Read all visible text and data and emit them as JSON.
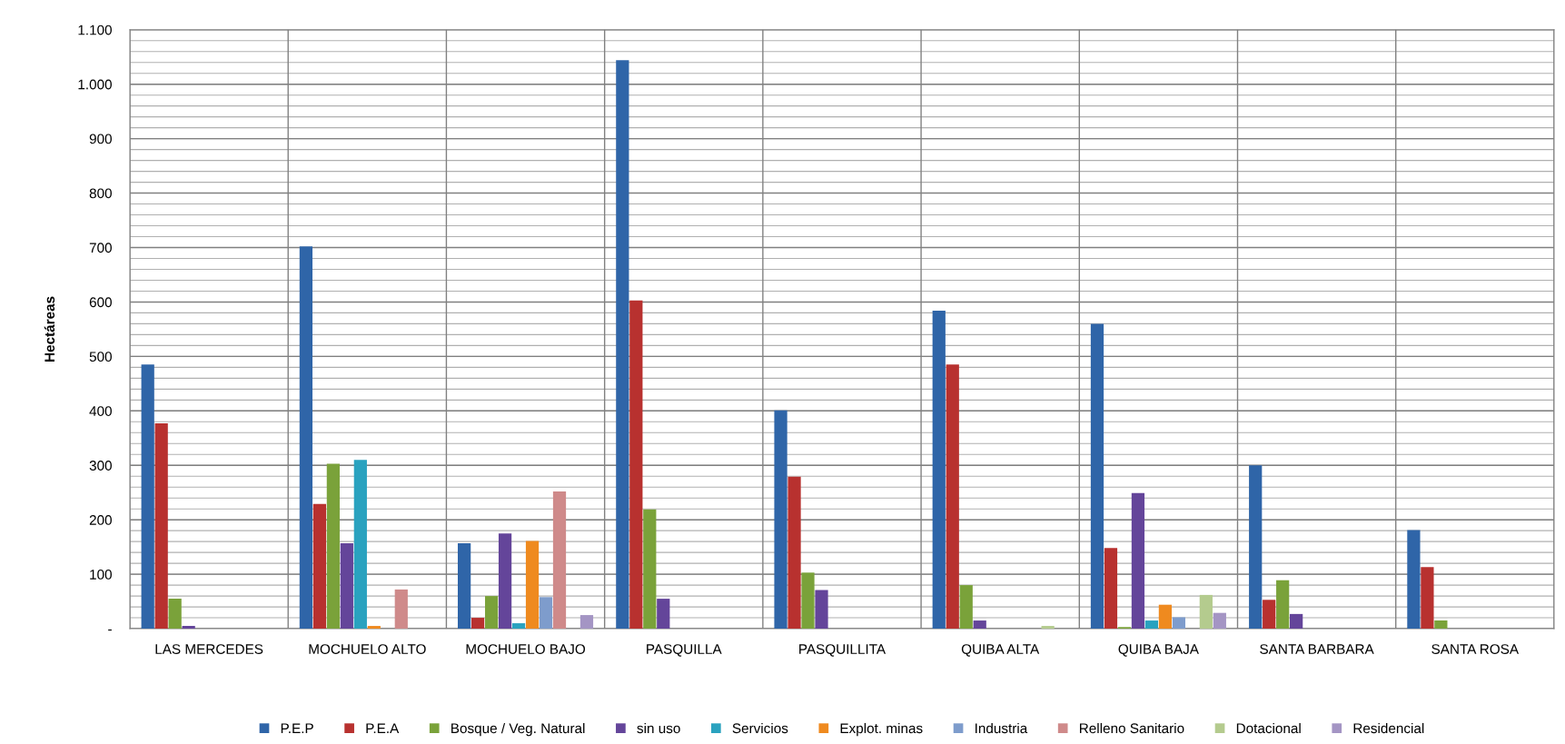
{
  "chart_data": {
    "type": "bar",
    "ylabel": "Hectáreas",
    "categories": [
      "LAS MERCEDES",
      "MOCHUELO ALTO",
      "MOCHUELO BAJO",
      "PASQUILLA",
      "PASQUILLITA",
      "QUIBA ALTA",
      "QUIBA BAJA",
      "SANTA BARBARA",
      "SANTA ROSA"
    ],
    "series": [
      {
        "name": "P.E.P",
        "color": "#2f65a8",
        "values": [
          485,
          702,
          157,
          1044,
          401,
          584,
          560,
          300,
          181
        ]
      },
      {
        "name": "P.E.A",
        "color": "#b8312f",
        "values": [
          377,
          229,
          20,
          603,
          279,
          485,
          148,
          53,
          113
        ]
      },
      {
        "name": "Bosque / Veg. Natural",
        "color": "#7aa23a",
        "values": [
          55,
          303,
          60,
          219,
          103,
          80,
          3,
          89,
          15
        ]
      },
      {
        "name": "sin uso",
        "color": "#64459a",
        "values": [
          5,
          157,
          175,
          55,
          71,
          15,
          249,
          27,
          0
        ]
      },
      {
        "name": "Servicios",
        "color": "#2aa2bf",
        "values": [
          0,
          310,
          10,
          0,
          0,
          0,
          15,
          0,
          0
        ]
      },
      {
        "name": "Explot. minas",
        "color": "#ef8a1f",
        "values": [
          0,
          5,
          161,
          0,
          0,
          0,
          44,
          0,
          0
        ]
      },
      {
        "name": "Industria",
        "color": "#7e9ccc",
        "values": [
          0,
          0,
          58,
          0,
          0,
          0,
          21,
          0,
          0
        ]
      },
      {
        "name": "Relleno Sanitario",
        "color": "#cf8a8a",
        "values": [
          0,
          72,
          252,
          0,
          0,
          0,
          0,
          0,
          0
        ]
      },
      {
        "name": "Dotacional",
        "color": "#b4cb8e",
        "values": [
          0,
          0,
          0,
          0,
          0,
          5,
          62,
          0,
          0
        ]
      },
      {
        "name": "Residencial",
        "color": "#a495c4",
        "values": [
          0,
          0,
          25,
          0,
          0,
          0,
          29,
          0,
          0
        ]
      }
    ],
    "ylim": [
      0,
      1100
    ],
    "yticks": [
      {
        "value": 0,
        "label": "-"
      },
      100,
      200,
      300,
      400,
      500,
      600,
      700,
      800,
      900,
      {
        "value": 1000,
        "label": "1.000"
      },
      {
        "value": 1100,
        "label": "1.100"
      }
    ],
    "grid": true,
    "legend": "bottom"
  }
}
